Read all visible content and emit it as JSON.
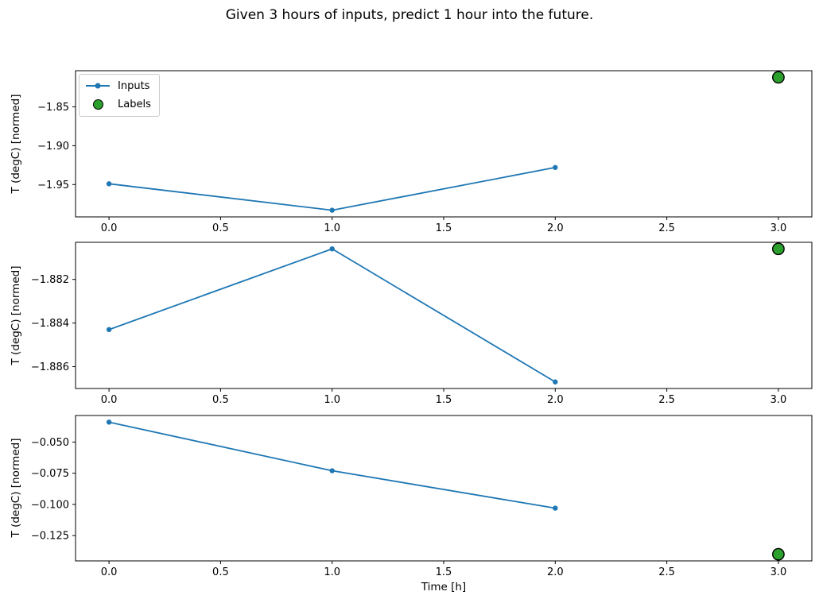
{
  "title": "Given 3 hours of inputs, predict 1 hour into the future.",
  "colors": {
    "inputs_line": "#1f77b4",
    "labels_fill": "#2ca02c",
    "labels_edge": "#000000",
    "axis": "#000000",
    "text": "#000000"
  },
  "legend": {
    "items": [
      {
        "label": "Inputs",
        "marker": "line-dot-icon"
      },
      {
        "label": "Labels",
        "marker": "circle-icon"
      }
    ]
  },
  "chart_data": [
    {
      "type": "line",
      "title": "",
      "xlabel": "",
      "ylabel": "T (degC) [normed]",
      "series": [
        {
          "name": "Inputs",
          "type": "line",
          "x": [
            0,
            1,
            2
          ],
          "y": [
            -1.949,
            -1.983,
            -1.928
          ]
        },
        {
          "name": "Labels",
          "type": "scatter",
          "x": [
            3
          ],
          "y": [
            -1.812
          ]
        }
      ],
      "xticks": [
        0,
        0.5,
        1,
        1.5,
        2,
        2.5,
        3
      ],
      "yticks": [
        -1.85,
        -1.9,
        -1.95
      ],
      "xtick_decimals": 1,
      "ytick_decimals": 2,
      "xlim": [
        -0.15,
        3.15
      ],
      "ylim": [
        -1.9916,
        -1.8035
      ],
      "legend_position": "upper-left",
      "grid": false
    },
    {
      "type": "line",
      "title": "",
      "xlabel": "",
      "ylabel": "T (degC) [normed]",
      "series": [
        {
          "name": "Inputs",
          "type": "line",
          "x": [
            0,
            1,
            2
          ],
          "y": [
            -1.8843,
            -1.8806,
            -1.8867
          ]
        },
        {
          "name": "Labels",
          "type": "scatter",
          "x": [
            3
          ],
          "y": [
            -1.8806
          ]
        }
      ],
      "xticks": [
        0,
        0.5,
        1,
        1.5,
        2,
        2.5,
        3
      ],
      "yticks": [
        -1.882,
        -1.884,
        -1.886
      ],
      "xtick_decimals": 1,
      "ytick_decimals": 3,
      "xlim": [
        -0.15,
        3.15
      ],
      "ylim": [
        -1.887,
        -1.8803
      ],
      "legend_position": "none",
      "grid": false
    },
    {
      "type": "line",
      "title": "",
      "xlabel": "Time [h]",
      "ylabel": "T (degC) [normed]",
      "series": [
        {
          "name": "Inputs",
          "type": "line",
          "x": [
            0,
            1,
            2
          ],
          "y": [
            -0.034,
            -0.073,
            -0.103
          ]
        },
        {
          "name": "Labels",
          "type": "scatter",
          "x": [
            3
          ],
          "y": [
            -0.14
          ]
        }
      ],
      "xticks": [
        0,
        0.5,
        1,
        1.5,
        2,
        2.5,
        3
      ],
      "yticks": [
        -0.05,
        -0.075,
        -0.1,
        -0.125
      ],
      "xtick_decimals": 1,
      "ytick_decimals": 3,
      "xlim": [
        -0.15,
        3.15
      ],
      "ylim": [
        -0.1453,
        -0.0287
      ],
      "legend_position": "none",
      "grid": false
    }
  ]
}
